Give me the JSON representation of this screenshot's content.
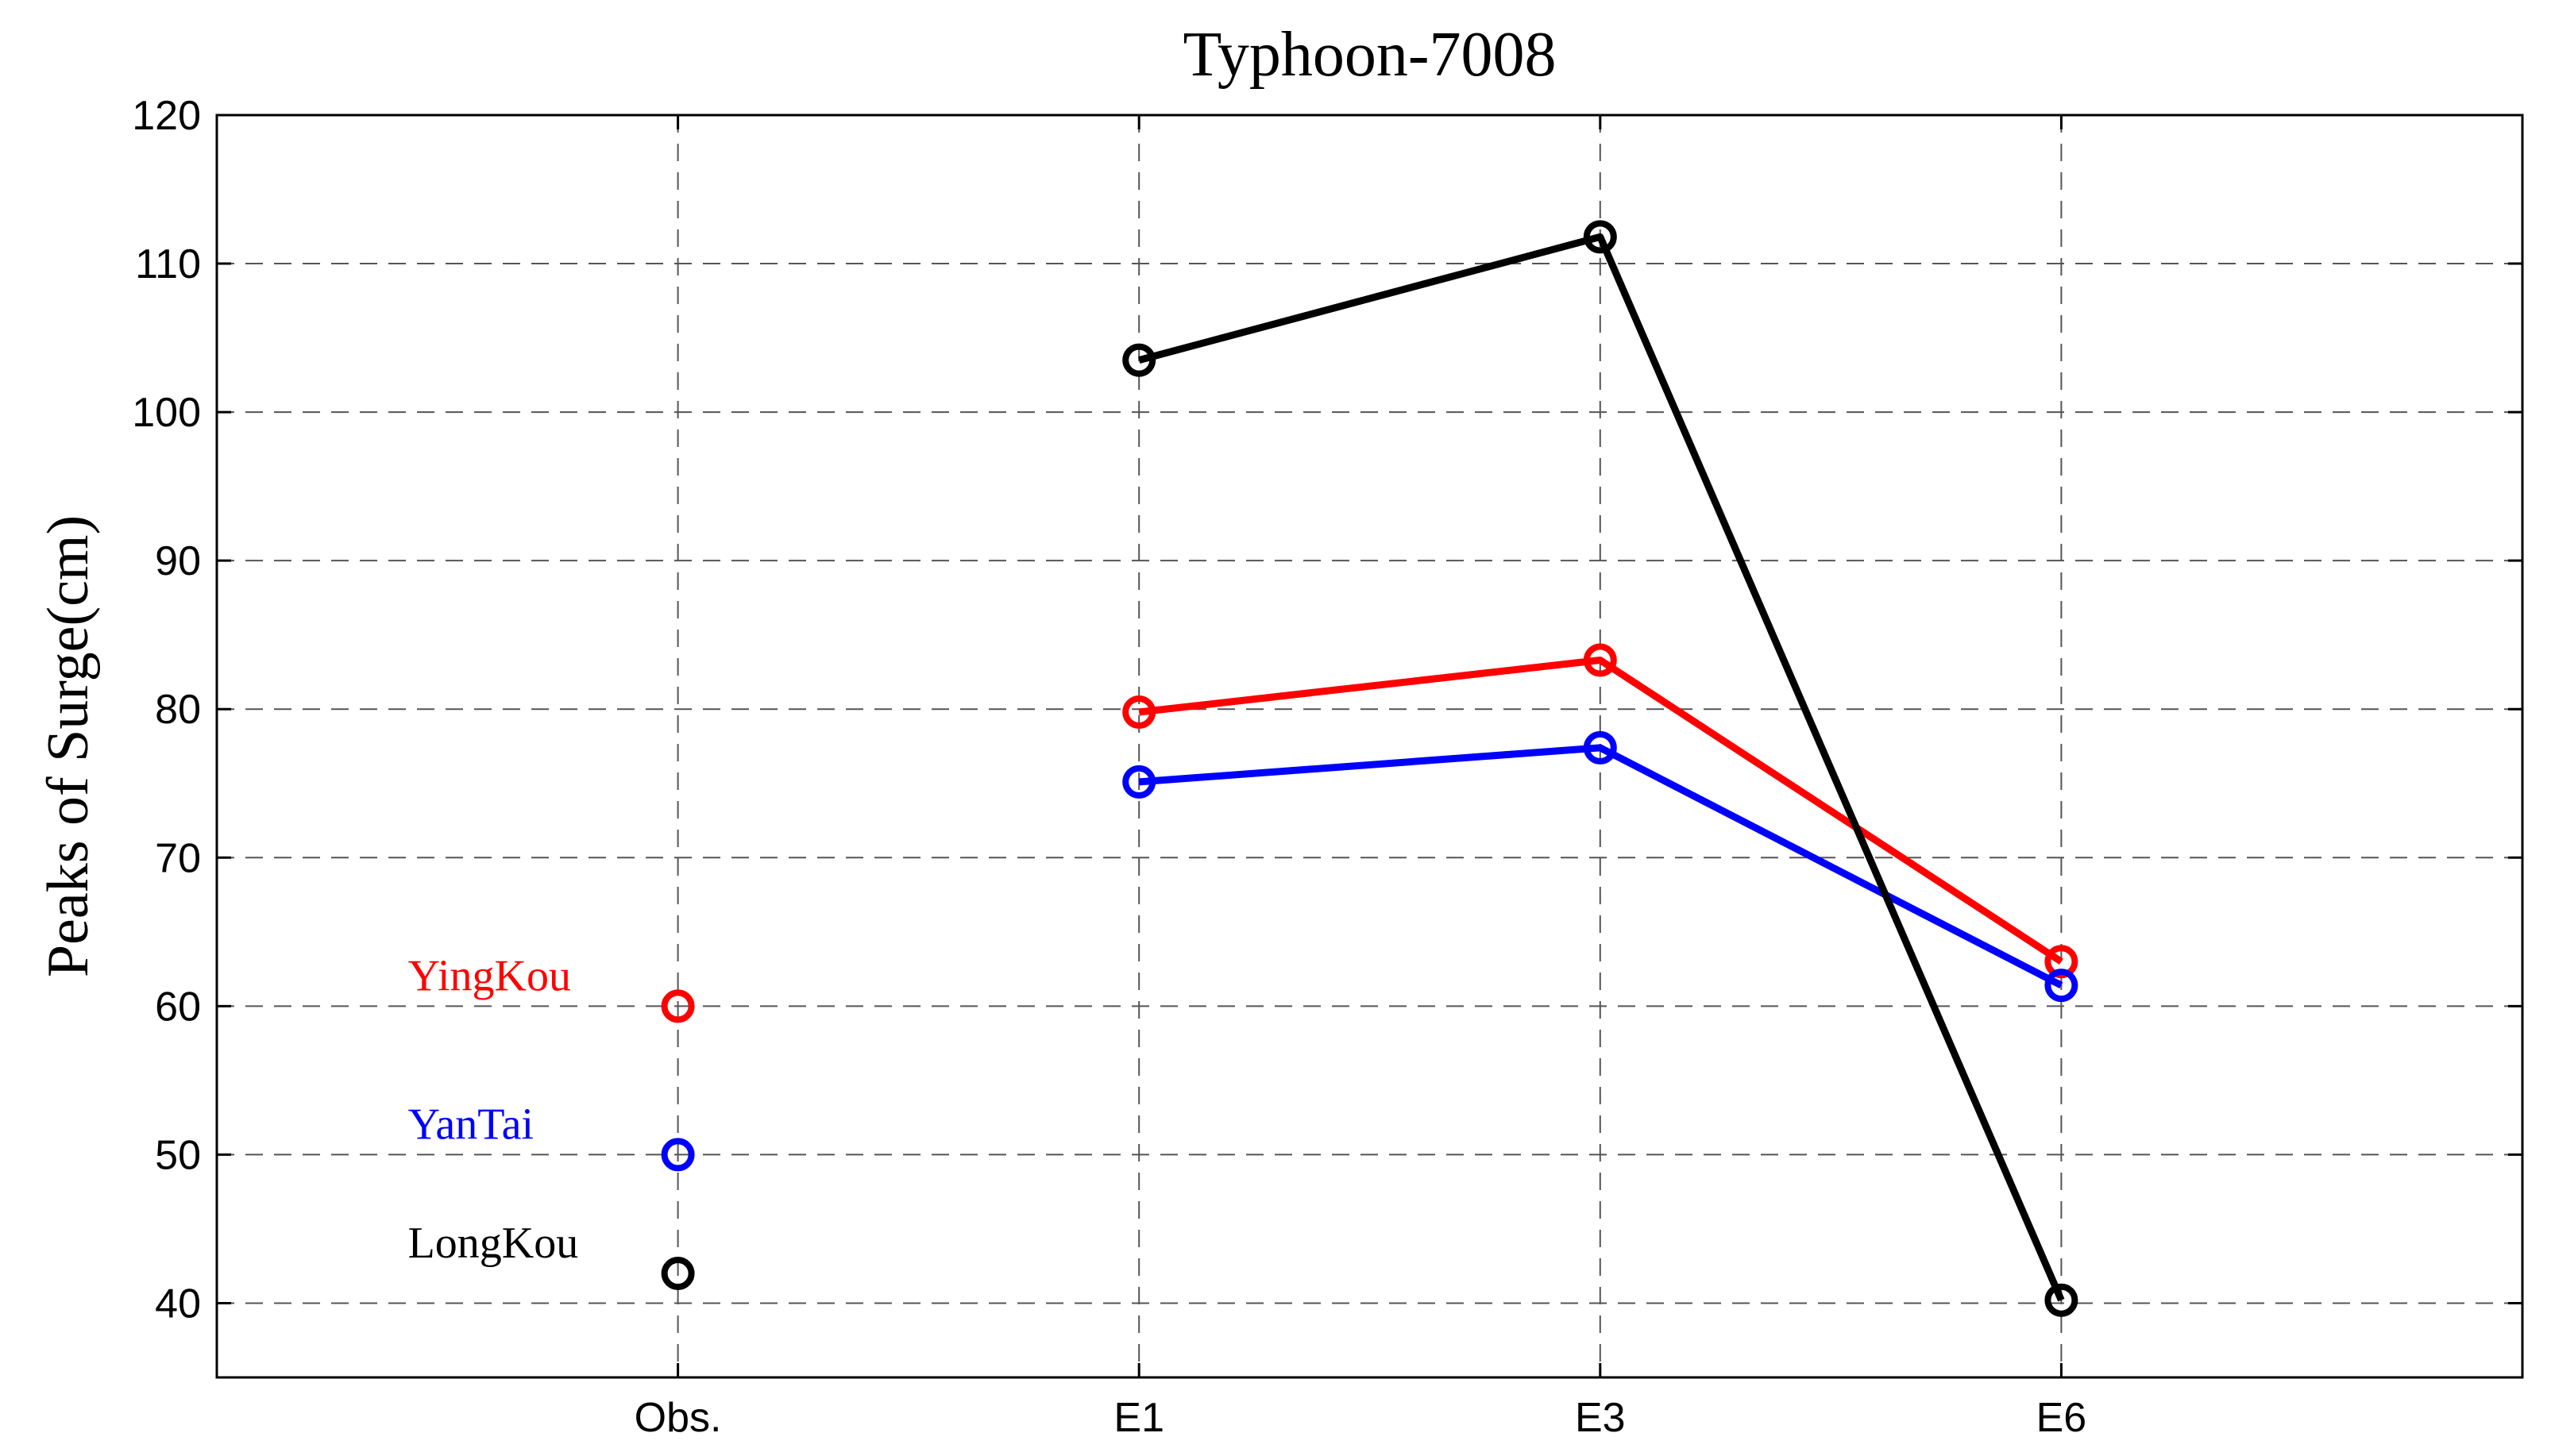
{
  "chart_data": {
    "type": "line",
    "title": "Typhoon-7008",
    "xlabel": "",
    "ylabel": "Peaks of Surge(cm)",
    "categories": [
      "Obs.",
      "E1",
      "E3",
      "E6"
    ],
    "xlim": [
      0,
      5
    ],
    "ylim": [
      35,
      120
    ],
    "yticks": [
      40,
      50,
      60,
      70,
      80,
      90,
      100,
      110,
      120
    ],
    "grid": true,
    "series": [
      {
        "name": "YingKou",
        "color": "#ff0000",
        "obs": 60,
        "values": [
          null,
          79.8,
          83.3,
          63.0
        ]
      },
      {
        "name": "YanTai",
        "color": "#0000ff",
        "obs": 50,
        "values": [
          null,
          75.1,
          77.4,
          61.4
        ]
      },
      {
        "name": "LongKou",
        "color": "#000000",
        "obs": 42,
        "values": [
          null,
          103.5,
          111.8,
          40.2
        ]
      }
    ],
    "legend_placement": "left, beside Obs. markers"
  }
}
